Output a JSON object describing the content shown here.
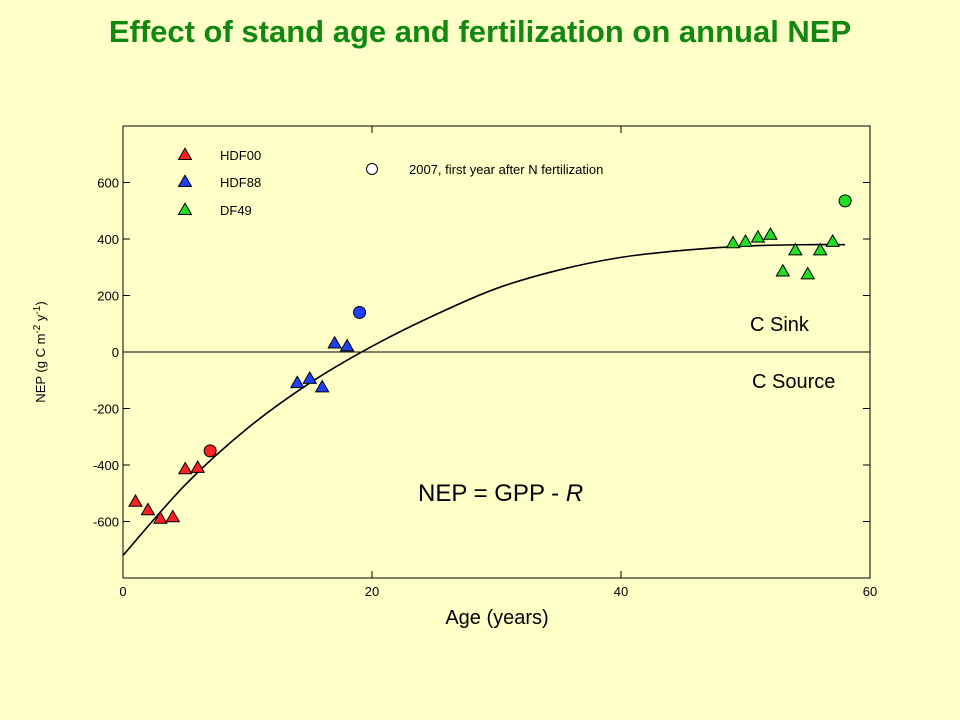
{
  "title": "Effect of stand age and fertilization on annual NEP",
  "chart_data": {
    "type": "scatter",
    "title": "Effect of stand age and fertilization on annual NEP",
    "xlabel": "Age (years)",
    "ylabel": "NEP (g C m-2 y-1)",
    "ylabel_parts": {
      "a": "NEP (g C m",
      "s1": "-2",
      "b": " y",
      "s2": "-1",
      "c": ")"
    },
    "xlim": [
      0,
      60
    ],
    "ylim": [
      -800,
      800
    ],
    "x_ticks": [
      0,
      20,
      40,
      60
    ],
    "y_ticks": [
      -600,
      -400,
      -200,
      0,
      200,
      400,
      600
    ],
    "grid": false,
    "legend_position": "top-left",
    "zero_line": true,
    "colors": {
      "HDF00": "#FF2020",
      "HDF88": "#2040FF",
      "DF49": "#22DD22"
    },
    "series": [
      {
        "name": "HDF00",
        "marker": "triangle",
        "color": "#FF2020",
        "x": [
          1,
          2,
          3,
          4,
          5,
          6
        ],
        "y": [
          -530,
          -560,
          -590,
          -585,
          -415,
          -410
        ]
      },
      {
        "name": "HDF88",
        "marker": "triangle",
        "color": "#2040FF",
        "x": [
          14,
          15,
          16,
          17,
          18
        ],
        "y": [
          -110,
          -95,
          -125,
          30,
          20
        ]
      },
      {
        "name": "DF49",
        "marker": "triangle",
        "color": "#22DD22",
        "x": [
          49,
          50,
          51,
          52,
          53,
          54,
          55,
          56,
          57
        ],
        "y": [
          385,
          390,
          405,
          415,
          285,
          360,
          275,
          360,
          390
        ]
      }
    ],
    "fertilized_points": {
      "name": "2007, first year after N fertilization",
      "marker": "circle",
      "points": [
        {
          "x": 7,
          "y": -350,
          "color": "#FF2020"
        },
        {
          "x": 19,
          "y": 140,
          "color": "#2040FF"
        },
        {
          "x": 58,
          "y": 535,
          "color": "#22DD22"
        }
      ]
    },
    "fit_curve": {
      "x": [
        0,
        5,
        10,
        15,
        20,
        25,
        30,
        35,
        40,
        45,
        50,
        55,
        58
      ],
      "y": [
        -720,
        -470,
        -270,
        -110,
        20,
        130,
        225,
        290,
        335,
        360,
        375,
        380,
        380
      ]
    },
    "annotations": {
      "sink": "C Sink",
      "source": "C Source",
      "equation_main": "NEP = GPP - ",
      "equation_var": "R"
    }
  }
}
